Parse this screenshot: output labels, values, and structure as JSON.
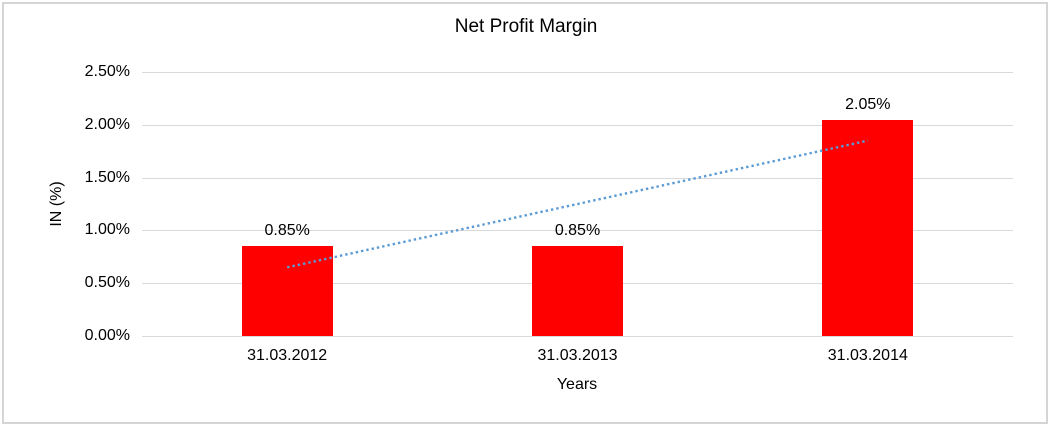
{
  "chart_data": {
    "type": "bar",
    "title": "Net Profit Margin",
    "categories": [
      "31.03.2012",
      "31.03.2013",
      "31.03.2014"
    ],
    "values": [
      0.85,
      0.85,
      2.05
    ],
    "data_labels": [
      "0.85%",
      "0.85%",
      "2.05%"
    ],
    "xlabel": "Years",
    "ylabel": "IN (%)",
    "ylim": [
      0,
      2.5
    ],
    "yticks": [
      {
        "value": 0.0,
        "label": "0.00%"
      },
      {
        "value": 0.5,
        "label": "0.50%"
      },
      {
        "value": 1.0,
        "label": "1.00%"
      },
      {
        "value": 1.5,
        "label": "1.50%"
      },
      {
        "value": 2.0,
        "label": "2.00%"
      },
      {
        "value": 2.5,
        "label": "2.50%"
      }
    ],
    "grid": true,
    "legend": "none",
    "bar_color": "#FF0000",
    "gridline_color": "#D9D9D9",
    "trendline": {
      "type": "linear",
      "style": "dotted",
      "color": "#5B9BD5",
      "start_value": 0.65,
      "end_value": 1.85
    }
  }
}
